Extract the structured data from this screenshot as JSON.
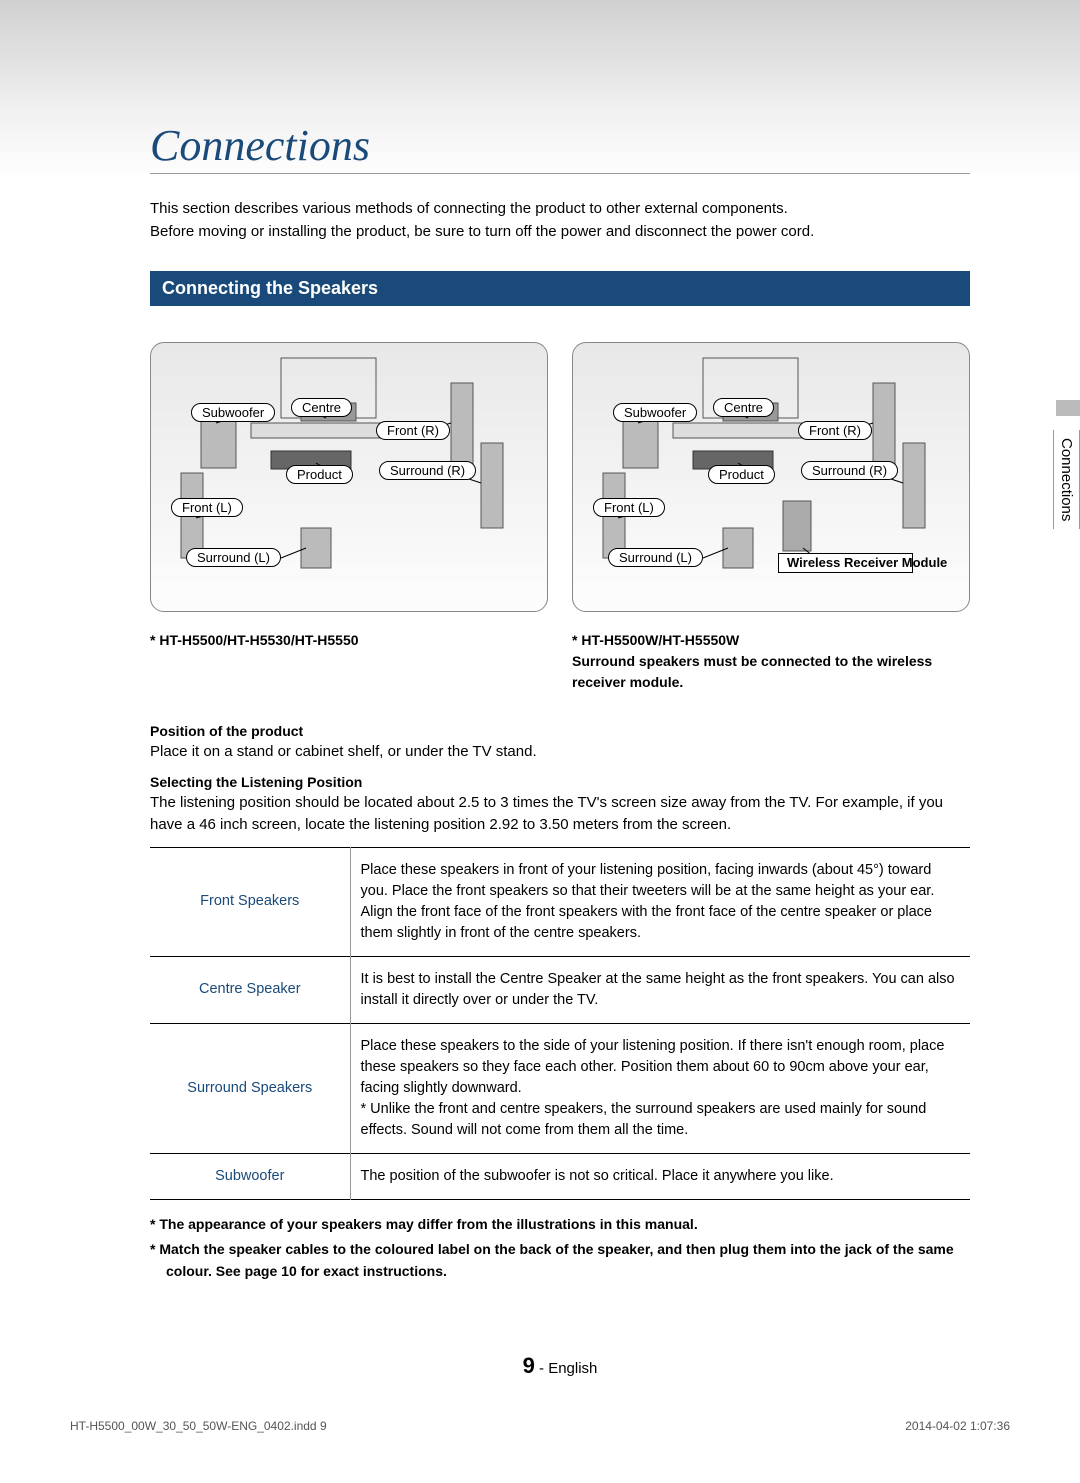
{
  "page": {
    "title": "Connections",
    "intro_line1": "This section describes various methods of connecting the product to other external components.",
    "intro_line2": "Before moving or installing the product, be sure to turn off the power and disconnect the power cord.",
    "side_tab": "Connections"
  },
  "section": {
    "heading": "Connecting the Speakers"
  },
  "diagram": {
    "labels": {
      "subwoofer": "Subwoofer",
      "centre": "Centre",
      "front_r": "Front (R)",
      "surround_r": "Surround (R)",
      "product": "Product",
      "front_l": "Front (L)",
      "surround_l": "Surround (L)",
      "wireless": "Wireless Receiver Module"
    },
    "left_model": "* HT-H5500/HT-H5530/HT-H5550",
    "right_model": "* HT-H5500W/HT-H5550W",
    "right_note": "Surround speakers must be connected to the wireless receiver module."
  },
  "position": {
    "h1": "Position of the product",
    "p1": "Place it on a stand or cabinet shelf, or under the TV stand.",
    "h2": "Selecting the Listening Position",
    "p2": "The listening position should be located about 2.5 to 3 times the TV's screen size away from the TV. For example, if you have a 46 inch screen, locate the listening position 2.92 to 3.50 meters from the screen."
  },
  "table": {
    "rows": [
      {
        "label": "Front Speakers",
        "text": "Place these speakers in front of your listening position, facing inwards (about 45°) toward you. Place the front speakers so that their tweeters will be at the same height as your ear. Align the front face of the front speakers with the front face of the centre speaker or place them slightly in front of the centre speakers."
      },
      {
        "label": "Centre Speaker",
        "text": "It is best to install the Centre Speaker at the same height as the front speakers. You can also install it directly over or under the TV."
      },
      {
        "label": "Surround Speakers",
        "text": "Place these speakers to the side of your listening position. If there isn't enough room, place these speakers so they face each other. Position them about 60 to 90cm above your ear, facing slightly downward.\n* Unlike the front and centre speakers, the surround speakers are used mainly for sound effects. Sound will not come from them all the time."
      },
      {
        "label": "Subwoofer",
        "text": "The position of the subwoofer is not so critical. Place it anywhere you like."
      }
    ]
  },
  "footnotes": {
    "f1": "*  The appearance of your speakers may differ from the illustrations in this manual.",
    "f2": "*  Match the speaker cables to the coloured label on the back of the speaker, and then plug them into the jack of the same colour. See page 10 for exact instructions."
  },
  "pagenum": {
    "num": "9",
    "lang": " - English"
  },
  "footer": {
    "left": "HT-H5500_00W_30_50_50W-ENG_0402.indd   9",
    "right": "2014-04-02   1:07:36"
  },
  "colors": {
    "heading_blue": "#1a4a7a",
    "border": "#000000"
  }
}
